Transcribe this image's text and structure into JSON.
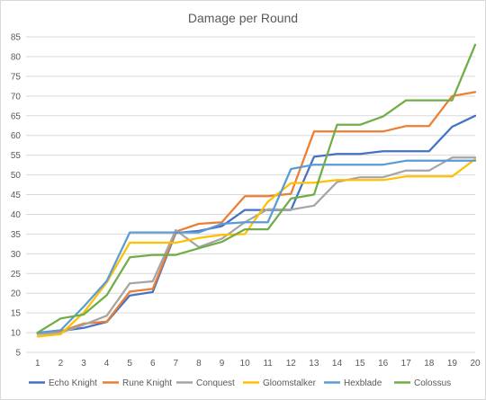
{
  "chart_data": {
    "type": "line",
    "title": "Damage per Round",
    "xlabel": "",
    "ylabel": "",
    "x": [
      1,
      2,
      3,
      4,
      5,
      6,
      7,
      8,
      9,
      10,
      11,
      12,
      13,
      14,
      15,
      16,
      17,
      18,
      19,
      20
    ],
    "ylim": [
      5,
      85
    ],
    "yticks": [
      5,
      10,
      15,
      20,
      25,
      30,
      35,
      40,
      45,
      50,
      55,
      60,
      65,
      70,
      75,
      80,
      85
    ],
    "grid": true,
    "legend": "bottom",
    "series": [
      {
        "name": "Echo Knight",
        "color": "#4472c4",
        "values": [
          9.7,
          10.4,
          11.2,
          12.7,
          19.4,
          20.3,
          35.3,
          35.8,
          37.0,
          41.1,
          41.1,
          41.1,
          54.6,
          55.3,
          55.3,
          56.0,
          56.0,
          56.0,
          62.2,
          65.0
        ]
      },
      {
        "name": "Rune Knight",
        "color": "#ed7d31",
        "values": [
          10.0,
          10.3,
          12.3,
          12.8,
          20.4,
          21.1,
          35.6,
          37.6,
          38.0,
          44.6,
          44.6,
          45.2,
          61.0,
          61.0,
          61.0,
          61.0,
          62.4,
          62.4,
          70.0,
          71.0
        ]
      },
      {
        "name": "Conquest",
        "color": "#a5a5a5",
        "values": [
          9.6,
          10.0,
          12.0,
          14.3,
          22.5,
          23.0,
          36.0,
          31.7,
          33.8,
          38.0,
          41.3,
          41.2,
          42.2,
          48.2,
          49.4,
          49.4,
          51.1,
          51.1,
          54.4,
          54.4
        ]
      },
      {
        "name": "Gloomstalker",
        "color": "#ffc000",
        "values": [
          9.0,
          9.6,
          15.1,
          22.7,
          32.8,
          32.8,
          32.8,
          34.0,
          34.8,
          35.0,
          43.2,
          47.9,
          48.0,
          48.7,
          48.7,
          48.7,
          49.6,
          49.6,
          49.6,
          54.0
        ]
      },
      {
        "name": "Hexblade",
        "color": "#5b9bd5",
        "values": [
          10.0,
          10.6,
          16.6,
          23.1,
          35.4,
          35.4,
          35.4,
          35.4,
          37.6,
          38.0,
          38.0,
          51.5,
          52.6,
          52.6,
          52.6,
          52.6,
          53.6,
          53.6,
          53.6,
          53.6
        ]
      },
      {
        "name": "Colossus",
        "color": "#70ad47",
        "values": [
          10.0,
          13.6,
          14.6,
          19.5,
          29.1,
          29.7,
          29.7,
          31.4,
          33.0,
          36.2,
          36.2,
          44.0,
          45.0,
          62.7,
          62.7,
          64.8,
          68.9,
          68.9,
          68.9,
          83.0
        ]
      }
    ]
  }
}
